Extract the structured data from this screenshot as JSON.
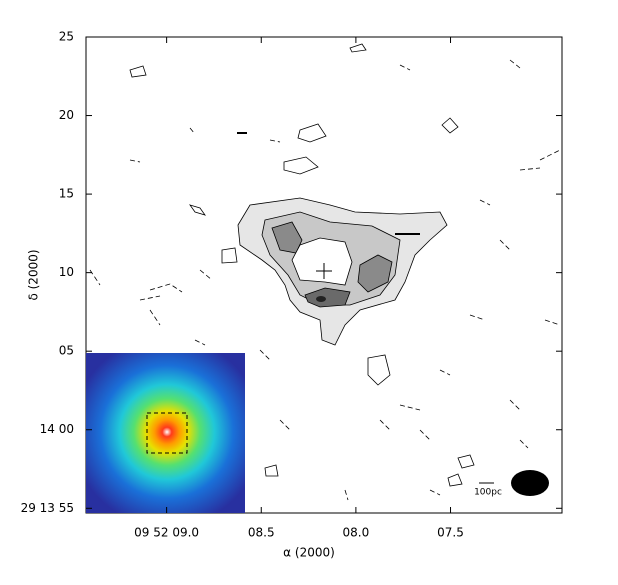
{
  "chart_data": {
    "type": "contour",
    "xlabel": "α (2000)",
    "ylabel": "δ (2000)",
    "xlim": [
      9.426,
      6.911
    ],
    "xticks": [
      {
        "value": 9.0,
        "label": "09 52 09.0"
      },
      {
        "value": 8.5,
        "label": "08.5"
      },
      {
        "value": 8.0,
        "label": "08.0"
      },
      {
        "value": 7.5,
        "label": "07.5"
      }
    ],
    "ylim": [
      -5.3,
      25
    ],
    "yticks": [
      {
        "value": 25,
        "label": "25"
      },
      {
        "value": 20,
        "label": "20"
      },
      {
        "value": 15,
        "label": "15"
      },
      {
        "value": 10,
        "label": "10"
      },
      {
        "value": 5,
        "label": "05"
      },
      {
        "value": 0,
        "label": "14 00"
      },
      {
        "value": -5,
        "label": "29 13 55"
      }
    ],
    "scale_bar": "100pc"
  }
}
